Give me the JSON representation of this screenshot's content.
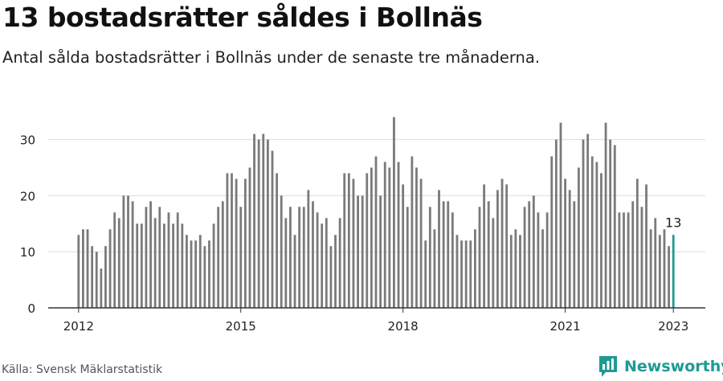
{
  "header": {
    "title": "13 bostadsrätter såldes i Bollnäs",
    "subtitle": "Antal sålda bostadsrätter i Bollnäs under de senaste tre månaderna."
  },
  "footer": {
    "source": "Källa: Svensk Mäklarstatistik",
    "brand": "Newsworthy"
  },
  "colors": {
    "bar": "#7a7a7a",
    "highlight": "#1e9a94",
    "grid": "#dddddd",
    "axis": "#333333",
    "brand": "#1e9a94"
  },
  "chart_data": {
    "type": "bar",
    "title": "",
    "xlabel": "",
    "ylabel": "",
    "x_start": "2012-01",
    "x_end": "2023-01",
    "xticks": [
      "2012",
      "2015",
      "2018",
      "2021",
      "2023"
    ],
    "yticks": [
      0,
      10,
      20,
      30
    ],
    "ylim": [
      0,
      35
    ],
    "grid": true,
    "highlight_label": "13",
    "values": [
      13,
      14,
      14,
      11,
      10,
      7,
      11,
      14,
      17,
      16,
      20,
      20,
      19,
      15,
      15,
      18,
      19,
      16,
      18,
      15,
      17,
      15,
      17,
      15,
      13,
      12,
      12,
      13,
      11,
      12,
      15,
      18,
      19,
      24,
      24,
      23,
      18,
      23,
      25,
      31,
      30,
      31,
      30,
      28,
      24,
      20,
      16,
      18,
      13,
      18,
      18,
      21,
      19,
      17,
      15,
      16,
      11,
      13,
      16,
      24,
      24,
      23,
      20,
      20,
      24,
      25,
      27,
      20,
      26,
      25,
      34,
      26,
      22,
      18,
      27,
      25,
      23,
      12,
      18,
      14,
      21,
      19,
      19,
      17,
      13,
      12,
      12,
      12,
      14,
      18,
      22,
      19,
      16,
      21,
      23,
      22,
      13,
      14,
      13,
      18,
      19,
      20,
      17,
      14,
      17,
      27,
      30,
      33,
      23,
      21,
      19,
      25,
      30,
      31,
      27,
      26,
      24,
      33,
      30,
      29,
      17,
      17,
      17,
      19,
      23,
      18,
      22,
      14,
      16,
      13,
      14,
      11,
      13
    ]
  }
}
